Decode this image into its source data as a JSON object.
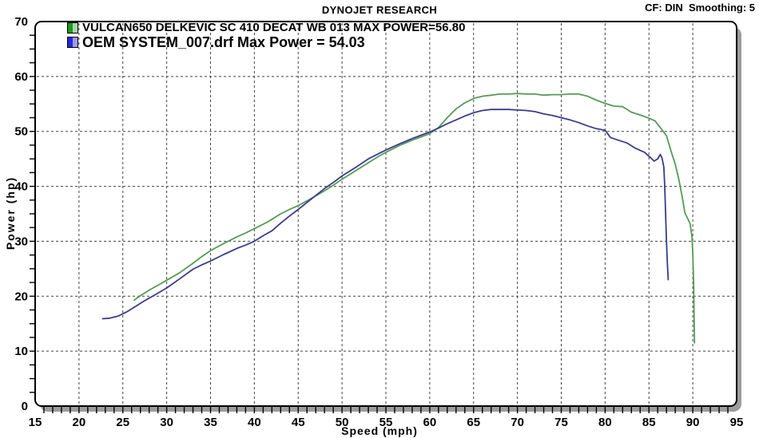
{
  "header": {
    "title": "DYNOJET RESEARCH",
    "correction_info": "CF: DIN  Smoothing: 5"
  },
  "chart_data": {
    "type": "line",
    "title": "DYNOJET RESEARCH",
    "xlabel": "Speed (mph)",
    "ylabel": "Power (hp)",
    "xlim": [
      15,
      95
    ],
    "ylim": [
      0,
      70
    ],
    "x_ticks": [
      15,
      20,
      25,
      30,
      35,
      40,
      45,
      50,
      55,
      60,
      65,
      70,
      75,
      80,
      85,
      90,
      95
    ],
    "y_ticks": [
      0,
      10,
      20,
      30,
      40,
      50,
      60,
      70
    ],
    "x_minor_tick_step": 1,
    "y_minor_tick_step": 2.5,
    "grid": {
      "style": "dashed",
      "color": "#404040"
    },
    "legend_position": "top-left",
    "series": [
      {
        "name": "VULCAN650 DELKEVIC SC 410 DECAT WB 013 MAX POWER=56.80",
        "max_power": 56.8,
        "color": "#569b56",
        "swatch": [
          "#1a9922",
          "#a6d7a6"
        ],
        "points": [
          [
            26.3,
            19.3
          ],
          [
            27,
            20.1
          ],
          [
            28,
            21.1
          ],
          [
            29,
            22.0
          ],
          [
            30,
            22.9
          ],
          [
            31.5,
            24.3
          ],
          [
            33,
            26.0
          ],
          [
            34,
            27.2
          ],
          [
            35,
            28.3
          ],
          [
            36.5,
            29.6
          ],
          [
            38,
            30.8
          ],
          [
            39,
            31.5
          ],
          [
            40,
            32.3
          ],
          [
            41.5,
            33.5
          ],
          [
            43,
            35.0
          ],
          [
            44,
            35.8
          ],
          [
            45,
            36.5
          ],
          [
            46.5,
            37.8
          ],
          [
            48,
            39.2
          ],
          [
            49,
            40.2
          ],
          [
            50,
            41.3
          ],
          [
            51.5,
            42.8
          ],
          [
            53,
            44.3
          ],
          [
            54,
            45.3
          ],
          [
            55,
            46.2
          ],
          [
            56.5,
            47.4
          ],
          [
            58,
            48.4
          ],
          [
            59,
            49.0
          ],
          [
            60,
            49.6
          ],
          [
            61,
            50.7
          ],
          [
            62,
            52.5
          ],
          [
            63,
            54.1
          ],
          [
            64,
            55.2
          ],
          [
            65,
            56.0
          ],
          [
            66,
            56.4
          ],
          [
            67,
            56.6
          ],
          [
            68,
            56.8
          ],
          [
            69,
            56.8
          ],
          [
            70,
            56.9
          ],
          [
            71,
            56.8
          ],
          [
            72,
            56.8
          ],
          [
            73,
            56.6
          ],
          [
            74,
            56.7
          ],
          [
            75,
            56.7
          ],
          [
            76,
            56.8
          ],
          [
            77,
            56.8
          ],
          [
            78,
            56.4
          ],
          [
            79,
            55.7
          ],
          [
            80,
            55.1
          ],
          [
            81,
            54.6
          ],
          [
            82,
            54.5
          ],
          [
            83,
            53.5
          ],
          [
            84,
            53.0
          ],
          [
            85,
            52.4
          ],
          [
            85.7,
            51.9
          ],
          [
            86.3,
            50.7
          ],
          [
            87,
            49.2
          ],
          [
            87.5,
            46.5
          ],
          [
            88,
            44.0
          ],
          [
            88.4,
            41.3
          ],
          [
            88.8,
            38.0
          ],
          [
            89.1,
            35.2
          ],
          [
            89.4,
            34.2
          ],
          [
            89.7,
            33.2
          ],
          [
            89.9,
            31.0
          ],
          [
            90.0,
            28.0
          ],
          [
            90.1,
            22.0
          ],
          [
            90.15,
            16.0
          ],
          [
            90.2,
            11.5
          ]
        ]
      },
      {
        "name": "OEM SYSTEM_007.drf Max Power = 54.03",
        "max_power": 54.03,
        "color": "#3b3b8c",
        "swatch": [
          "#2727dd",
          "#9c9cf0"
        ],
        "points": [
          [
            22.7,
            15.9
          ],
          [
            23.5,
            16.0
          ],
          [
            24.5,
            16.4
          ],
          [
            25.5,
            17.2
          ],
          [
            26.5,
            18.2
          ],
          [
            27.5,
            19.2
          ],
          [
            28.5,
            20.1
          ],
          [
            30,
            21.5
          ],
          [
            31.5,
            23.2
          ],
          [
            33,
            24.9
          ],
          [
            34,
            25.7
          ],
          [
            35,
            26.4
          ],
          [
            36.5,
            27.6
          ],
          [
            38,
            28.7
          ],
          [
            39,
            29.3
          ],
          [
            40,
            30.0
          ],
          [
            41,
            31.0
          ],
          [
            42,
            31.9
          ],
          [
            43,
            33.3
          ],
          [
            44,
            34.6
          ],
          [
            45,
            35.8
          ],
          [
            46.5,
            37.7
          ],
          [
            48,
            39.6
          ],
          [
            49,
            40.7
          ],
          [
            50,
            41.9
          ],
          [
            51.5,
            43.4
          ],
          [
            53,
            45.0
          ],
          [
            54,
            45.8
          ],
          [
            55,
            46.6
          ],
          [
            56.5,
            47.7
          ],
          [
            58,
            48.7
          ],
          [
            59,
            49.3
          ],
          [
            60,
            49.9
          ],
          [
            61,
            50.6
          ],
          [
            62,
            51.4
          ],
          [
            63,
            52.1
          ],
          [
            64,
            52.8
          ],
          [
            65,
            53.4
          ],
          [
            66,
            53.8
          ],
          [
            67,
            54.0
          ],
          [
            68,
            54.0
          ],
          [
            69,
            54.0
          ],
          [
            70,
            53.9
          ],
          [
            71,
            53.8
          ],
          [
            72,
            53.6
          ],
          [
            73,
            53.2
          ],
          [
            74,
            52.9
          ],
          [
            75,
            52.5
          ],
          [
            76,
            52.1
          ],
          [
            77,
            51.6
          ],
          [
            78,
            51.0
          ],
          [
            79,
            50.5
          ],
          [
            80,
            50.2
          ],
          [
            80.6,
            48.9
          ],
          [
            81.5,
            48.4
          ],
          [
            82.5,
            47.9
          ],
          [
            83.5,
            46.9
          ],
          [
            84.5,
            46.2
          ],
          [
            85.2,
            45.2
          ],
          [
            85.6,
            44.6
          ],
          [
            86,
            45.0
          ],
          [
            86.3,
            45.8
          ],
          [
            86.5,
            45.1
          ],
          [
            86.7,
            43.5
          ],
          [
            86.8,
            40.0
          ],
          [
            86.9,
            35.0
          ],
          [
            87,
            30.0
          ],
          [
            87.1,
            26.0
          ],
          [
            87.2,
            23.0
          ]
        ]
      }
    ]
  }
}
